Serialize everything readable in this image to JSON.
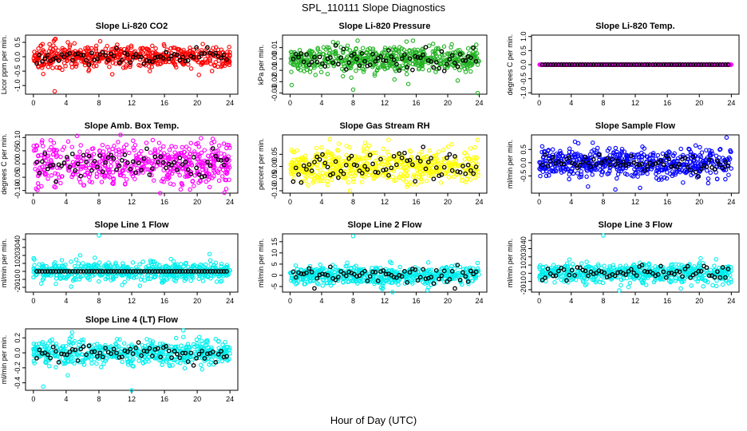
{
  "figure": {
    "title": "SPL_110111  Slope Diagnostics",
    "xlabel": "Hour of Day (UTC)"
  },
  "chart_data": [
    {
      "type": "scatter",
      "title": "Slope Li-820 CO2",
      "ylabel": "Licor ppm per min.",
      "color": "#ff0000",
      "xlim": [
        0,
        24
      ],
      "xticks": [
        0,
        4,
        8,
        12,
        16,
        20,
        24
      ],
      "ylim": [
        -1.3,
        0.75
      ],
      "yticks": [
        -1.0,
        -0.5,
        0.0,
        0.5
      ],
      "ytick_labels": [
        "-1.0",
        "-0.5",
        "0.0",
        "0.5"
      ],
      "spread": 0.18,
      "black_spread": 0.12,
      "outliers": [
        [
          2.5,
          0.55
        ],
        [
          2.7,
          0.62
        ],
        [
          1.2,
          -0.6
        ],
        [
          2.6,
          -1.2
        ],
        [
          6.8,
          -0.45
        ],
        [
          4.2,
          0.5
        ]
      ]
    },
    {
      "type": "scatter",
      "title": "Slope Li-820 Pressure",
      "ylabel": "kPa per min.",
      "color": "#22b222",
      "xlim": [
        0,
        24
      ],
      "xticks": [
        0,
        4,
        8,
        12,
        16,
        20,
        24
      ],
      "ylim": [
        -0.031,
        0.021
      ],
      "yticks": [
        -0.03,
        -0.02,
        -0.01,
        0.0,
        0.01
      ],
      "ytick_labels": [
        "-0.03",
        "-0.02",
        "-0.01",
        "0.00",
        "0.01"
      ],
      "spread": 0.006,
      "black_spread": 0.005,
      "outliers": [
        [
          8.0,
          -0.027
        ],
        [
          15.0,
          -0.022
        ],
        [
          23.8,
          -0.03
        ],
        [
          0.2,
          -0.023
        ]
      ]
    },
    {
      "type": "scatter",
      "title": "Slope Li-820 Temp.",
      "ylabel": "degrees C per min.",
      "color": "#ff00ff",
      "xlim": [
        0,
        24
      ],
      "xticks": [
        0,
        4,
        8,
        12,
        16,
        20,
        24
      ],
      "ylim": [
        -1.05,
        1.05
      ],
      "yticks": [
        -1.0,
        -0.5,
        0.0,
        0.5,
        1.0
      ],
      "ytick_labels": [
        "-1.0",
        "-0.5",
        "0.0",
        "0.5",
        "1.0"
      ],
      "spread": 0.0,
      "black_spread": 0.0,
      "outliers": []
    },
    {
      "type": "scatter",
      "title": "Slope Amb. Box Temp.",
      "ylabel": "degrees C per min.",
      "color": "#ff00ff",
      "xlim": [
        0,
        24
      ],
      "xticks": [
        0,
        4,
        8,
        12,
        16,
        20,
        24
      ],
      "ylim": [
        -0.11,
        0.11
      ],
      "yticks": [
        -0.1,
        -0.05,
        0.0,
        0.05,
        0.1
      ],
      "ytick_labels": [
        "-0.10",
        "-0.05",
        "0.00",
        "0.05",
        "0.10"
      ],
      "spread": 0.04,
      "black_spread": 0.025,
      "outliers": []
    },
    {
      "type": "scatter",
      "title": "Slope Gas Stream RH",
      "ylabel": "percent per min.",
      "color": "#ffff00",
      "xlim": [
        0,
        24
      ],
      "xticks": [
        0,
        4,
        8,
        12,
        16,
        20,
        24
      ],
      "ylim": [
        -0.11,
        0.13
      ],
      "yticks": [
        -0.1,
        -0.05,
        0.0,
        0.05
      ],
      "ytick_labels": [
        "-0.10",
        "-0.05",
        "0.00",
        "0.05"
      ],
      "spread": 0.035,
      "black_spread": 0.03,
      "outliers": [
        [
          23.8,
          0.11
        ],
        [
          7.6,
          -0.1
        ],
        [
          12.5,
          0.11
        ]
      ]
    },
    {
      "type": "scatter",
      "title": "Slope Sample Flow",
      "ylabel": "ml/min per min.",
      "color": "#0000ff",
      "xlim": [
        0,
        24
      ],
      "xticks": [
        0,
        4,
        8,
        12,
        16,
        20,
        24
      ],
      "ylim": [
        -1.15,
        1.05
      ],
      "yticks": [
        -0.5,
        0.0,
        0.5
      ],
      "ytick_labels": [
        "-0.5",
        "0.0",
        "0.5"
      ],
      "spread": 0.28,
      "black_spread": 0.15,
      "outliers": [
        [
          23.4,
          0.95
        ],
        [
          12.6,
          -0.95
        ],
        [
          6.1,
          -0.9
        ],
        [
          1.7,
          0.5
        ]
      ]
    },
    {
      "type": "scatter",
      "title": "Slope Line 1 Flow",
      "ylabel": "ml/min per min.",
      "color": "#00eeee",
      "xlim": [
        0,
        24
      ],
      "xticks": [
        0,
        4,
        8,
        12,
        16,
        20,
        24
      ],
      "ylim": [
        -26,
        47
      ],
      "yticks": [
        -20,
        -10,
        0,
        10,
        20,
        30,
        40
      ],
      "ytick_labels": [
        "-20",
        "-10",
        "0",
        "10",
        "20",
        "30",
        "40"
      ],
      "spread": 5.5,
      "black_spread": 0.0,
      "outliers": [
        [
          8.0,
          45
        ],
        [
          7.5,
          17
        ],
        [
          13.0,
          -18
        ],
        [
          4.6,
          -19
        ]
      ]
    },
    {
      "type": "scatter",
      "title": "Slope Line 2 Flow",
      "ylabel": "ml/min per min.",
      "color": "#00eeee",
      "xlim": [
        0,
        24
      ],
      "xticks": [
        0,
        4,
        8,
        12,
        16,
        20,
        24
      ],
      "ylim": [
        -7.5,
        18.5
      ],
      "yticks": [
        -5,
        0,
        5,
        10,
        15
      ],
      "ytick_labels": [
        "-5",
        "0",
        "5",
        "10",
        "15"
      ],
      "spread": 2.0,
      "black_spread": 1.8,
      "outliers": [
        [
          8.0,
          17.5
        ],
        [
          13.0,
          -7.5
        ],
        [
          23.8,
          5.5
        ]
      ]
    },
    {
      "type": "scatter",
      "title": "Slope Line 3 Flow",
      "ylabel": "ml/min per min.",
      "color": "#00eeee",
      "xlim": [
        0,
        24
      ],
      "xticks": [
        0,
        4,
        8,
        12,
        16,
        20,
        24
      ],
      "ylim": [
        -23,
        48
      ],
      "yticks": [
        -20,
        -10,
        0,
        10,
        20,
        30,
        40
      ],
      "ytick_labels": [
        "-20",
        "-10",
        "0",
        "10",
        "20",
        "30",
        "40"
      ],
      "spread": 6.0,
      "black_spread": 4.0,
      "outliers": [
        [
          8.0,
          46
        ],
        [
          10.0,
          -21
        ],
        [
          20.5,
          -16
        ]
      ]
    },
    {
      "type": "scatter",
      "title": "Slope Line 4 (LT) Flow",
      "ylabel": "ml/min per min.",
      "color": "#00eeee",
      "xlim": [
        0,
        24
      ],
      "xticks": [
        0,
        4,
        8,
        12,
        16,
        20,
        24
      ],
      "ylim": [
        -0.5,
        0.32
      ],
      "yticks": [
        -0.4,
        -0.2,
        0.0,
        0.2
      ],
      "ytick_labels": [
        "-0.4",
        "-0.2",
        "0.0",
        "0.2"
      ],
      "spread": 0.08,
      "black_spread": 0.06,
      "outliers": [
        [
          4.2,
          -0.3
        ],
        [
          12.0,
          -0.5
        ],
        [
          1.2,
          -0.45
        ],
        [
          18.3,
          0.3
        ]
      ]
    }
  ]
}
